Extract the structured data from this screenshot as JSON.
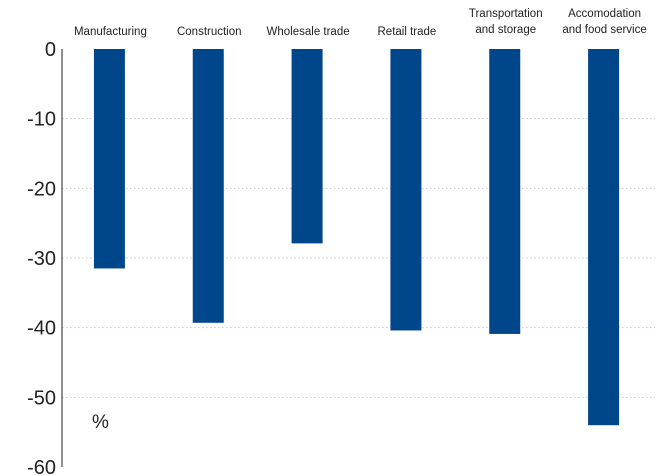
{
  "chart_data": {
    "type": "bar",
    "categories": [
      [
        "Manufacturing"
      ],
      [
        "Construction"
      ],
      [
        "Wholesale trade"
      ],
      [
        "Retail trade"
      ],
      [
        "Transportation",
        "and storage"
      ],
      [
        "Accomodation",
        "and food service"
      ]
    ],
    "values": [
      -31.5,
      -39.3,
      -27.9,
      -40.4,
      -40.9,
      -54.0
    ],
    "ylim": [
      -60,
      0
    ],
    "yticks": [
      0,
      -10,
      -20,
      -30,
      -40,
      -50,
      -60
    ],
    "unit_label": "%",
    "grid": true,
    "bar_color": "#00468b",
    "grid_color": "#c8c8c8"
  }
}
